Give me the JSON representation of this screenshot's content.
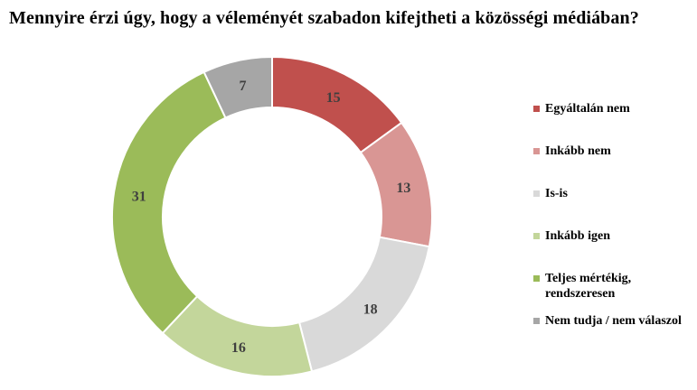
{
  "title": "Mennyire érzi úgy, hogy a véleményét szabadon kifejtheti a közösségi médiában?",
  "chart_data": {
    "type": "pie",
    "subtype": "donut",
    "title": "Mennyire érzi úgy, hogy a véleményét szabadon kifejtheti a közösségi médiában?",
    "categories": [
      "Egyáltalán nem",
      "Inkább nem",
      "Is-is",
      "Inkább igen",
      "Teljes mértékig, rendszeresen",
      "Nem tudja / nem válaszol"
    ],
    "values": [
      15,
      13,
      18,
      16,
      31,
      7
    ],
    "colors": [
      "#C0504D",
      "#D99694",
      "#D9D9D9",
      "#C3D69B",
      "#9BBB59",
      "#A6A6A6"
    ],
    "start_angle_deg": 0,
    "direction": "clockwise",
    "donut_hole_ratio": 0.68,
    "segment_border_color": "#FFFFFF",
    "data_labels": "values shown inside ring",
    "label_color": "#3F3F3F",
    "legend_position": "right",
    "background": "#FFFFFF"
  }
}
